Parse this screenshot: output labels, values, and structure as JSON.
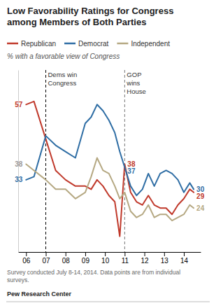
{
  "chart_data": {
    "type": "line",
    "title": "Low Favorability Ratings for Congress\namong Members of Both Parties",
    "subtitle": "% with a favorable view of Congress",
    "footnote": "Survey conducted July 8-14, 2014. Data points are from individual\nsurveys.",
    "source": "Pew Research Center",
    "x": [
      2006.0,
      2006.4,
      2007.0,
      2007.5,
      2008.0,
      2008.5,
      2009.0,
      2009.3,
      2009.6,
      2009.9,
      2010.2,
      2010.5,
      2010.75,
      2011.0,
      2011.3,
      2011.6,
      2011.9,
      2012.2,
      2012.5,
      2012.8,
      2013.1,
      2013.4,
      2013.7,
      2014.0,
      2014.3,
      2014.5
    ],
    "series": [
      {
        "name": "Republican",
        "color": "#c0392b",
        "values": [
          57,
          58,
          46,
          36,
          33,
          31,
          31,
          30,
          33,
          31,
          28,
          26,
          15,
          38,
          29,
          26,
          25,
          28,
          25,
          24,
          24,
          22,
          25,
          27,
          30,
          29
        ]
      },
      {
        "name": "Democrat",
        "color": "#2e6da4",
        "values": [
          33,
          34,
          47,
          44,
          42,
          40,
          51,
          53,
          57,
          55,
          52,
          48,
          42,
          37,
          31,
          28,
          30,
          35,
          31,
          35,
          36,
          35,
          33,
          29,
          32,
          30
        ]
      },
      {
        "name": "Independent",
        "color": "#b5a882",
        "values": [
          38,
          36,
          33,
          30,
          30,
          27,
          29,
          34,
          40,
          36,
          35,
          31,
          27,
          29,
          23,
          21,
          22,
          25,
          21,
          22,
          22,
          20,
          21,
          22,
          25,
          24
        ]
      }
    ],
    "vlines": [
      {
        "x": 2007.0,
        "label": "Dems win\nCongress",
        "color": "#000000",
        "line_style": "dashed"
      },
      {
        "x": 2011.0,
        "label": "GOP\nwins\nHouse",
        "color": "#777777",
        "line_style": "dashed"
      }
    ],
    "annotations": [
      {
        "text": "57",
        "x": 2006.0,
        "y": 57,
        "color": "#c0392b"
      },
      {
        "text": "38",
        "x": 2011.0,
        "y": 38,
        "color": "#c0392b"
      },
      {
        "text": "37",
        "x": 2011.0,
        "y": 37,
        "color": "#2e6da4"
      },
      {
        "text": "38",
        "x": 2006.0,
        "y": 38,
        "color": "#999999"
      },
      {
        "text": "33",
        "x": 2006.0,
        "y": 33,
        "color": "#2e6da4"
      },
      {
        "text": "30",
        "x": 2014.5,
        "y": 30,
        "color": "#2e6da4"
      },
      {
        "text": "29",
        "x": 2014.5,
        "y": 29,
        "color": "#c0392b"
      },
      {
        "text": "24",
        "x": 2014.5,
        "y": 24,
        "color": "#b5a882"
      }
    ],
    "xlim": [
      2005.6,
      2014.85
    ],
    "ylim": [
      10,
      68
    ],
    "xticks": [
      {
        "value": 2006,
        "label": "06"
      },
      {
        "value": 2007,
        "label": "07"
      },
      {
        "value": 2008,
        "label": "08"
      },
      {
        "value": 2009,
        "label": "09"
      },
      {
        "value": 2010,
        "label": "10"
      },
      {
        "value": 2011,
        "label": "11"
      },
      {
        "value": 2012,
        "label": "12"
      },
      {
        "value": 2013,
        "label": "13"
      },
      {
        "value": 2014,
        "label": "14"
      }
    ],
    "tick_labels": "x",
    "grid": false,
    "legend": "upper left"
  }
}
